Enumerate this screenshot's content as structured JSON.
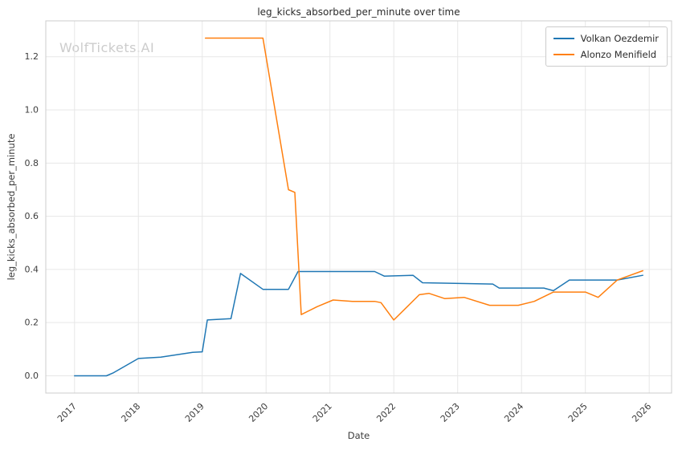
{
  "watermark": "WolfTickets.AI",
  "colors": {
    "series1": "#1f77b4",
    "series2": "#ff7f0e",
    "grid": "#e7e7e7",
    "plot_border": "#cccccc",
    "tick_text": "#3d3d3d",
    "title_text": "#2b2b2b",
    "watermark_text": "#cccccc"
  },
  "chart_data": {
    "type": "line",
    "title": "leg_kicks_absorbed_per_minute over time",
    "xlabel": "Date",
    "ylabel": "leg_kicks_absorbed_per_minute",
    "grid": true,
    "legend_position": "upper right",
    "xlim": [
      2016.55,
      2026.35
    ],
    "ylim": [
      -0.065,
      1.335
    ],
    "x_ticks": [
      2017,
      2018,
      2019,
      2020,
      2021,
      2022,
      2023,
      2024,
      2025,
      2026
    ],
    "x_tick_labels": [
      "2017",
      "2018",
      "2019",
      "2020",
      "2021",
      "2022",
      "2023",
      "2024",
      "2025",
      "2026"
    ],
    "y_ticks": [
      0.0,
      0.2,
      0.4,
      0.6,
      0.8,
      1.0,
      1.2
    ],
    "y_tick_labels": [
      "0.0",
      "0.2",
      "0.4",
      "0.6",
      "0.8",
      "1.0",
      "1.2"
    ],
    "series": [
      {
        "name": "Volkan Oezdemir",
        "color": "#1f77b4",
        "x": [
          2017.0,
          2017.5,
          2017.6,
          2018.0,
          2018.35,
          2018.85,
          2019.0,
          2019.08,
          2019.45,
          2019.6,
          2019.95,
          2020.35,
          2020.5,
          2021.7,
          2021.85,
          2022.3,
          2022.45,
          2023.55,
          2023.65,
          2024.35,
          2024.5,
          2024.75,
          2025.5,
          2025.9
        ],
        "y": [
          0.0,
          0.0,
          0.01,
          0.065,
          0.07,
          0.088,
          0.09,
          0.21,
          0.215,
          0.385,
          0.325,
          0.325,
          0.392,
          0.392,
          0.375,
          0.378,
          0.35,
          0.345,
          0.33,
          0.33,
          0.32,
          0.36,
          0.36,
          0.378
        ]
      },
      {
        "name": "Alonzo Menifield",
        "color": "#ff7f0e",
        "x": [
          2019.05,
          2019.95,
          2020.35,
          2020.45,
          2020.55,
          2020.8,
          2021.05,
          2021.35,
          2021.7,
          2021.8,
          2022.0,
          2022.4,
          2022.55,
          2022.8,
          2023.1,
          2023.5,
          2023.95,
          2024.2,
          2024.5,
          2025.0,
          2025.2,
          2025.5,
          2025.9
        ],
        "y": [
          1.27,
          1.27,
          0.7,
          0.69,
          0.23,
          0.26,
          0.285,
          0.28,
          0.28,
          0.275,
          0.21,
          0.305,
          0.31,
          0.29,
          0.295,
          0.265,
          0.265,
          0.28,
          0.315,
          0.315,
          0.295,
          0.36,
          0.395
        ]
      }
    ]
  }
}
